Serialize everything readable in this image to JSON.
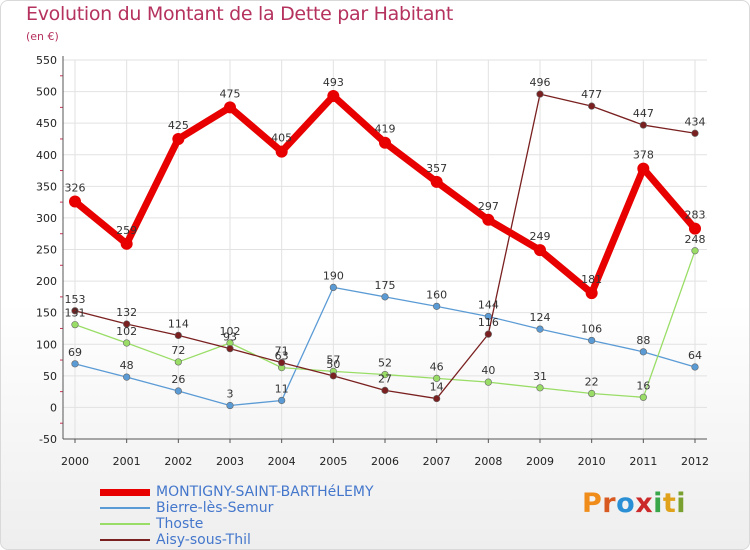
{
  "title": "Evolution du Montant de la Dette par Habitant",
  "unit": "(en €)",
  "logo": {
    "letters": [
      "P",
      "r",
      "o",
      "x",
      "i",
      "t",
      "i"
    ],
    "colors": [
      "#f08c1a",
      "#d85a20",
      "#2a8fd4",
      "#cc2a2a",
      "#3aa64a",
      "#e0a21a",
      "#7aa030"
    ]
  },
  "chart_data": {
    "type": "line",
    "x": [
      "2000",
      "2001",
      "2002",
      "2003",
      "2004",
      "2005",
      "2006",
      "2007",
      "2008",
      "2009",
      "2010",
      "2011",
      "2012"
    ],
    "ylim": [
      -50,
      550
    ],
    "yticks": [
      "-50",
      "0",
      "50",
      "100",
      "150",
      "200",
      "250",
      "300",
      "350",
      "400",
      "450",
      "500",
      "550"
    ],
    "grid": true,
    "legend_position": "bottom-left",
    "series": [
      {
        "name": "MONTIGNY-SAINT-BARTHéLEMY",
        "color": "#e80000",
        "values": [
          326,
          259,
          425,
          475,
          405,
          493,
          419,
          357,
          297,
          249,
          181,
          378,
          283
        ],
        "labels": [
          "326",
          "259",
          "425",
          "475",
          "405",
          "493",
          "419",
          "357",
          "297",
          "249",
          "181",
          "378",
          "283"
        ]
      },
      {
        "name": "Bierre-lès-Semur",
        "color": "#5b9bd5",
        "values": [
          69,
          48,
          26,
          3,
          11,
          190,
          175,
          160,
          144,
          124,
          106,
          88,
          64
        ],
        "labels": [
          "69",
          "48",
          "26",
          "3",
          "11",
          "190",
          "175",
          "160",
          "144",
          "124",
          "106",
          "88",
          "64"
        ]
      },
      {
        "name": "Thoste",
        "color": "#99dd66",
        "values": [
          131,
          102,
          72,
          102,
          63,
          57,
          52,
          46,
          40,
          31,
          22,
          16,
          248
        ],
        "labels": [
          "131",
          "102",
          "72",
          "102",
          "63",
          "57",
          "52",
          "46",
          "40",
          "31",
          "22",
          "16",
          "248"
        ]
      },
      {
        "name": "Aisy-sous-Thil",
        "color": "#7a2020",
        "values": [
          153,
          132,
          114,
          93,
          71,
          50,
          27,
          14,
          116,
          496,
          477,
          447,
          434
        ],
        "labels": [
          "153",
          "132",
          "114",
          "93",
          "71",
          "50",
          "27",
          "14",
          "116",
          "496",
          "477",
          "447",
          "434"
        ]
      }
    ]
  }
}
